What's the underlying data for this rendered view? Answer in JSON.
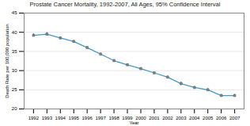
{
  "chart_data": {
    "type": "line",
    "title": "Prostate Cancer Mortality, 1992-2007, All Ages, 95% Confidence Interval",
    "xlabel": "Year",
    "ylabel": "Death Rate per 100,000 population",
    "x": [
      1992,
      1993,
      1994,
      1995,
      1996,
      1997,
      1998,
      1999,
      2000,
      2001,
      2002,
      2003,
      2004,
      2005,
      2006,
      2007
    ],
    "values": [
      39.2,
      39.5,
      38.5,
      37.6,
      36.0,
      34.3,
      32.6,
      31.5,
      30.5,
      29.4,
      28.3,
      26.6,
      25.6,
      25.0,
      23.5,
      23.5
    ],
    "errors": [
      0.4,
      0.4,
      0.3,
      0.3,
      0.3,
      0.3,
      0.3,
      0.3,
      0.3,
      0.3,
      0.3,
      0.45,
      0.3,
      0.3,
      0.3,
      0.3
    ],
    "color": "#4499cc",
    "marker": "square",
    "xlim": [
      1991.3,
      2007.7
    ],
    "xticks": [
      1992,
      1993,
      1994,
      1995,
      1996,
      1997,
      1998,
      1999,
      2000,
      2001,
      2002,
      2003,
      2004,
      2005,
      2006,
      2007
    ],
    "ylim": [
      20,
      45
    ],
    "yticks": [
      20,
      25,
      30,
      35,
      40,
      45
    ],
    "grid": true
  }
}
